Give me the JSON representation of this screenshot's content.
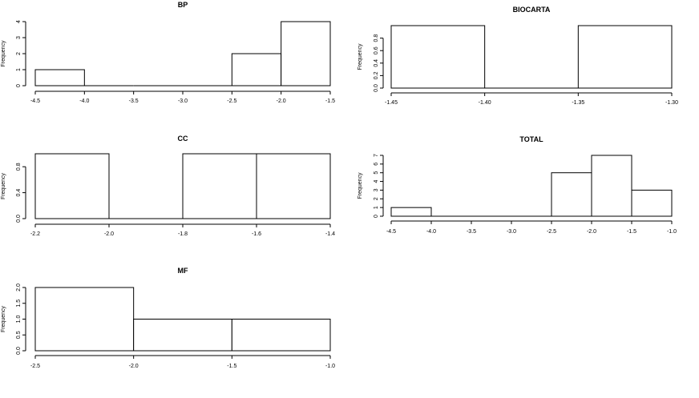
{
  "chart_data": [
    {
      "type": "bar",
      "title": "BP",
      "ylabel": "Frequency",
      "xlabel": "",
      "bins": [
        [
          -4.5,
          -4.0
        ],
        [
          -4.0,
          -3.5
        ],
        [
          -3.5,
          -3.0
        ],
        [
          -3.0,
          -2.5
        ],
        [
          -2.5,
          -2.0
        ],
        [
          -2.0,
          -1.5
        ]
      ],
      "values": [
        1,
        0,
        0,
        0,
        2,
        4
      ],
      "xlim": [
        -4.5,
        -1.5
      ],
      "ylim": [
        0,
        4
      ],
      "xticks": [
        -4.5,
        -4.0,
        -3.5,
        -3.0,
        -2.5,
        -2.0,
        -1.5
      ],
      "xtick_labels": [
        "-4.5",
        "-4.0",
        "-3.5",
        "-3.0",
        "-2.5",
        "-2.0",
        "-1.5"
      ],
      "yticks": [
        0,
        1,
        2,
        3,
        4
      ],
      "ytick_labels": [
        "0",
        "1",
        "2",
        "3",
        "4"
      ],
      "grid": false
    },
    {
      "type": "bar",
      "title": "BIOCARTA",
      "ylabel": "Frequency",
      "xlabel": "",
      "bins": [
        [
          -1.45,
          -1.4
        ],
        [
          -1.4,
          -1.35
        ],
        [
          -1.35,
          -1.3
        ]
      ],
      "values": [
        1,
        0,
        1
      ],
      "xlim": [
        -1.45,
        -1.3
      ],
      "ylim": [
        0,
        1
      ],
      "xticks": [
        -1.45,
        -1.4,
        -1.35,
        -1.3
      ],
      "xtick_labels": [
        "-1.45",
        "-1.40",
        "-1.35",
        "-1.30"
      ],
      "yticks": [
        0,
        0.2,
        0.4,
        0.6,
        0.8
      ],
      "ytick_labels": [
        "0.0",
        "0.2",
        "0.4",
        "0.6",
        "0.8"
      ],
      "grid": false
    },
    {
      "type": "bar",
      "title": "CC",
      "ylabel": "Frequency",
      "xlabel": "",
      "bins": [
        [
          -2.2,
          -2.0
        ],
        [
          -2.0,
          -1.8
        ],
        [
          -1.8,
          -1.6
        ],
        [
          -1.6,
          -1.4
        ]
      ],
      "values": [
        1,
        0,
        1,
        1
      ],
      "xlim": [
        -2.2,
        -1.4
      ],
      "ylim": [
        0,
        1
      ],
      "xticks": [
        -2.2,
        -2.0,
        -1.8,
        -1.6,
        -1.4
      ],
      "xtick_labels": [
        "-2.2",
        "-2.0",
        "-1.8",
        "-1.6",
        "-1.4"
      ],
      "yticks": [
        0,
        0.4,
        0.8
      ],
      "ytick_labels": [
        "0.0",
        "0.4",
        "0.8"
      ],
      "grid": false
    },
    {
      "type": "bar",
      "title": "TOTAL",
      "ylabel": "Frequency",
      "xlabel": "",
      "bins": [
        [
          -4.5,
          -4.0
        ],
        [
          -4.0,
          -3.5
        ],
        [
          -3.5,
          -3.0
        ],
        [
          -3.0,
          -2.5
        ],
        [
          -2.5,
          -2.0
        ],
        [
          -2.0,
          -1.5
        ],
        [
          -1.5,
          -1.0
        ]
      ],
      "values": [
        1,
        0,
        0,
        0,
        5,
        7,
        3
      ],
      "xlim": [
        -4.5,
        -1.0
      ],
      "ylim": [
        0,
        7
      ],
      "xticks": [
        -4.5,
        -4.0,
        -3.5,
        -3.0,
        -2.5,
        -2.0,
        -1.5,
        -1.0
      ],
      "xtick_labels": [
        "-4.5",
        "-4.0",
        "-3.5",
        "-3.0",
        "-2.5",
        "-2.0",
        "-1.5",
        "-1.0"
      ],
      "yticks": [
        0,
        1,
        2,
        3,
        4,
        5,
        6,
        7
      ],
      "ytick_labels": [
        "0",
        "1",
        "2",
        "3",
        "4",
        "5",
        "6",
        "7"
      ],
      "grid": false
    },
    {
      "type": "bar",
      "title": "MF",
      "ylabel": "Frequency",
      "xlabel": "",
      "bins": [
        [
          -2.5,
          -2.0
        ],
        [
          -2.0,
          -1.5
        ],
        [
          -1.5,
          -1.0
        ]
      ],
      "values": [
        2,
        1,
        1
      ],
      "xlim": [
        -2.5,
        -1.0
      ],
      "ylim": [
        0,
        2
      ],
      "xticks": [
        -2.5,
        -2.0,
        -1.5,
        -1.0
      ],
      "xtick_labels": [
        "-2.5",
        "-2.0",
        "-1.5",
        "-1.0"
      ],
      "yticks": [
        0,
        0.5,
        1.0,
        1.5,
        2.0
      ],
      "ytick_labels": [
        "0.0",
        "0.5",
        "1.0",
        "1.5",
        "2.0"
      ],
      "grid": false
    }
  ]
}
